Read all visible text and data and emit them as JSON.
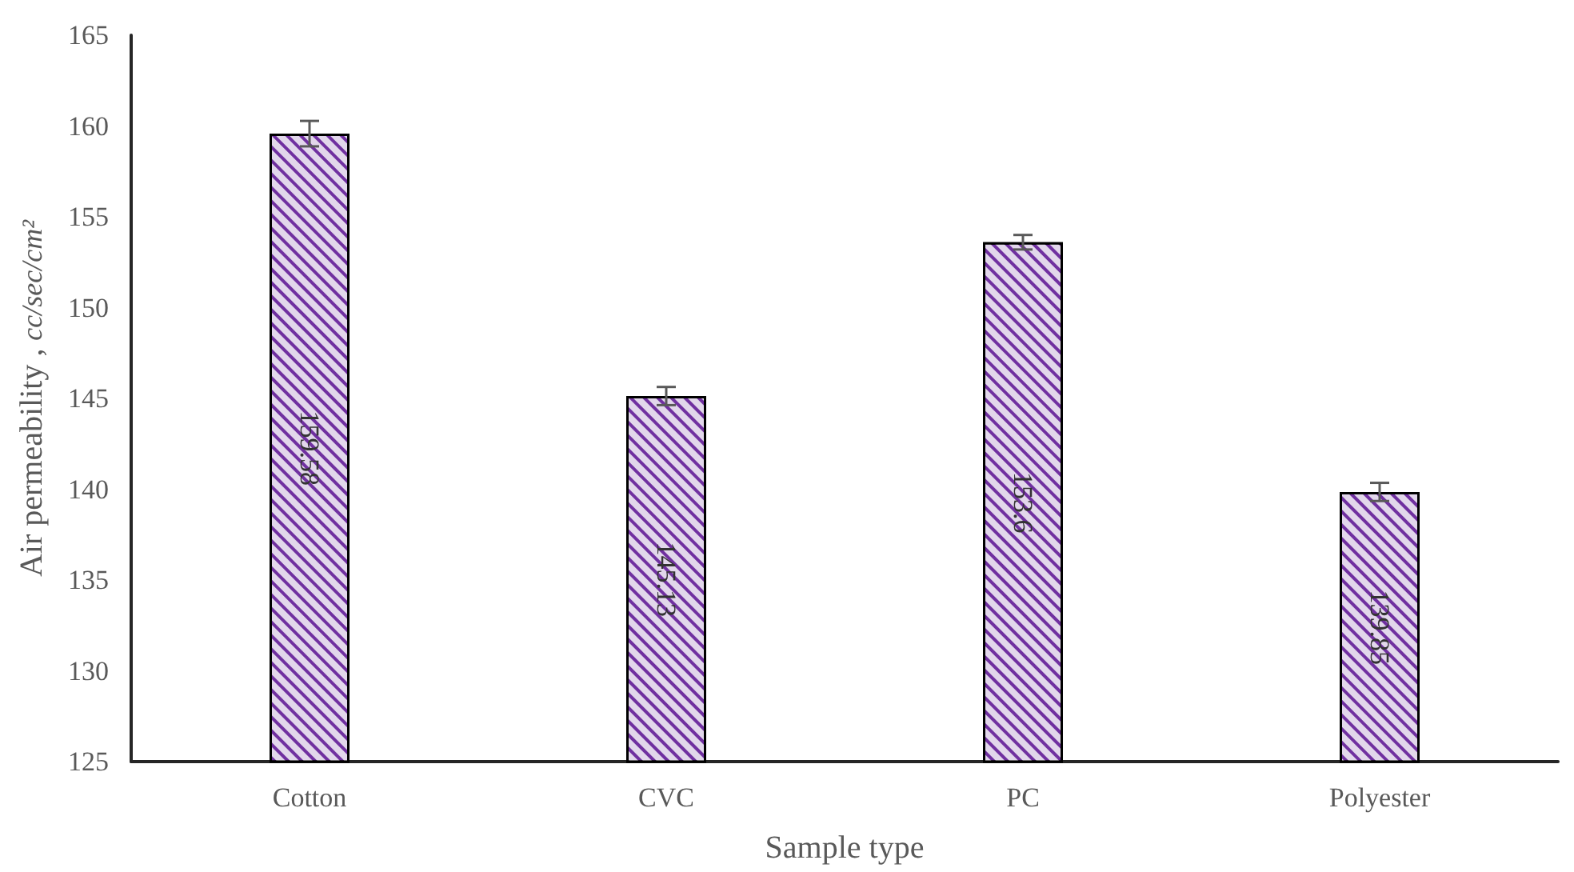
{
  "chart_data": {
    "type": "bar",
    "xlabel": "Sample type",
    "ylabel": "Air permeability , cc/sec/cm²",
    "categories": [
      "Cotton",
      "CVC",
      "PC",
      "Polyester"
    ],
    "values": [
      159.58,
      145.13,
      153.6,
      139.85
    ],
    "errors": [
      0.7,
      0.5,
      0.4,
      0.5
    ],
    "color": "#7030a0",
    "ylim": [
      125,
      165
    ],
    "yticks": [
      125,
      130,
      135,
      140,
      145,
      150,
      155,
      160,
      165
    ],
    "data_labels": true,
    "grid": false
  }
}
